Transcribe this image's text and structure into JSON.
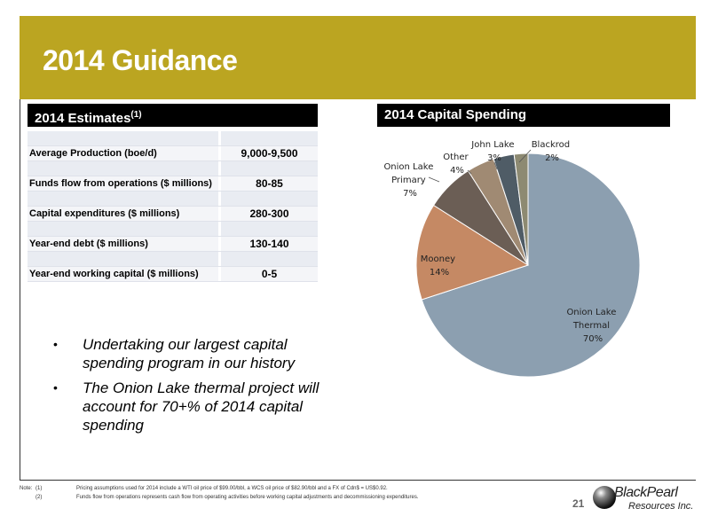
{
  "title": "2014 Guidance",
  "estimates": {
    "heading": "2014 Estimates",
    "heading_sup": "(1)",
    "rows": [
      {
        "label": "Average Production (boe/d)",
        "value": "9,000-9,500"
      },
      {
        "label": "Funds flow from operations ($ millions)",
        "value": "80-85"
      },
      {
        "label": "Capital expenditures ($ millions)",
        "value": "280-300"
      },
      {
        "label": "Year-end debt ($ millions)",
        "value": "130-140"
      },
      {
        "label": "Year-end working capital ($ millions)",
        "value": "0-5"
      }
    ]
  },
  "capital": {
    "heading": "2014 Capital Spending"
  },
  "bullets": [
    "Undertaking our largest capital spending program in our history",
    "The Onion Lake thermal project will account for 70+% of 2014 capital spending"
  ],
  "chart_data": {
    "type": "pie",
    "title": "2014 Capital Spending",
    "slices": [
      {
        "label": "Onion Lake Thermal",
        "value": 70,
        "pct_label": "70%",
        "color": "#8c9fb0"
      },
      {
        "label": "Mooney",
        "value": 14,
        "pct_label": "14%",
        "color": "#c58964"
      },
      {
        "label": "Onion Lake Primary",
        "value": 7,
        "pct_label": "7%",
        "color": "#6b5e55"
      },
      {
        "label": "Other",
        "value": 4,
        "pct_label": "4%",
        "color": "#a08a73"
      },
      {
        "label": "John Lake",
        "value": 3,
        "pct_label": "3%",
        "color": "#4f5c66"
      },
      {
        "label": "Blackrod",
        "value": 2,
        "pct_label": "2%",
        "color": "#8d8a72"
      }
    ]
  },
  "notes": {
    "label": "Note:",
    "items": [
      {
        "num": "(1)",
        "text": "Pricing assumptions used for 2014 include a WTI oil price of $99.00/bbl, a WCS oil price of $82.90/bbl and a FX of Cdn$ = US$0.92."
      },
      {
        "num": "(2)",
        "text": "Funds flow from operations represents cash flow from operating activities before working capital adjustments and decommissioning expenditures."
      }
    ]
  },
  "page_number": "21",
  "logo": {
    "line1": "BlackPearl",
    "line2": "Resources Inc."
  }
}
